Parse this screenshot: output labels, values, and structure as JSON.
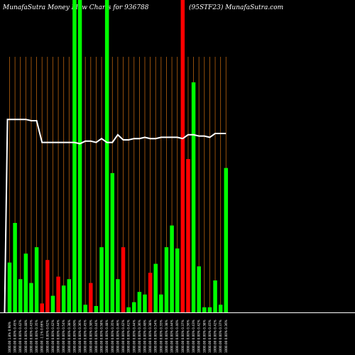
{
  "chart_data": {
    "type": "bar",
    "title_left": "MunafaSutra  Money Flow  Charts for 936788",
    "title_right": "(95STF23) MunafaSutra.com",
    "colors": {
      "background": "#000000",
      "grid": "#b8620f",
      "positive": "#00ff00",
      "negative": "#ff0000",
      "line": "#ffffff",
      "baseline": "#ffffff"
    },
    "ylim": [
      0,
      100
    ],
    "categories": [
      "1000.00 1.8% 0.98%",
      "1000.00 0.00% 0.45%",
      "1000.00 0.00% 0.42%",
      "1000.00 0.00% 0.48%",
      "1000.00 0.00% 0.43%",
      "1000.00 0.00% 0.35%",
      "1000.00 -1.1% 0.66%",
      "1000.00 0.00% 0.62%",
      "1000.00 0.00% 0.42%",
      "1000.00 0.00% 0.44%",
      "1000.00 0.00% 0.54%",
      "1000.00 0.00% 0.38%",
      "1000.00 0.00% 0.60%",
      "1000.00 0.00% 0.36%",
      "1000.00 0.00% 0.45%",
      "1000.00 0.00% 0.38%",
      "1000.00 0.00% 0.44%",
      "1000.00 0.00% 0.58%",
      "1000.00 0.00% 0.48%",
      "1000.00 0.00% 0.35%",
      "1000.00 0.00% 0.46%",
      "1000.00 0.00% 0.42%",
      "1000.00 0.00% 0.41%",
      "1000.00 0.00% 0.44%",
      "1000.00 0.00% 0.36%",
      "1000.00 0.00% 0.48%",
      "1000.00 0.00% 0.38%",
      "1000.00 0.00% 0.54%",
      "1000.00 0.00% 0.35%",
      "1000.00 0.00% 0.38%",
      "1000.00 0.00% 0.44%",
      "1000.00 0.00% 0.40%",
      "1000.00 0.00% 0.37%",
      "1000.00 0.00% 0.56%",
      "1000.00 0.00% 0.43%",
      "1000.00 0.00% 0.42%",
      "1000.00 0.00% 0.38%",
      "1000.00 0.00% 0.45%",
      "1000.00 0.00% 0.42%",
      "1000.00 0.00% 0.37%",
      "1000.00 0.00% 0.36%"
    ],
    "values": [
      19.5,
      35,
      13,
      23,
      11.5,
      25.5,
      3.5,
      20.5,
      6.5,
      14,
      10.5,
      13,
      100,
      100,
      3,
      11.5,
      2.5,
      25.5,
      100,
      54.5,
      13,
      25.5,
      2,
      4,
      8,
      7,
      15.5,
      19,
      7,
      25.5,
      34,
      25,
      100,
      60,
      90,
      18,
      2,
      2,
      12.5,
      3,
      56.5
    ],
    "signs": [
      "up",
      "up",
      "up",
      "up",
      "up",
      "up",
      "down",
      "down",
      "up",
      "down",
      "up",
      "up",
      "up",
      "up",
      "up",
      "down",
      "up",
      "up",
      "up",
      "up",
      "up",
      "down",
      "up",
      "up",
      "up",
      "up",
      "down",
      "up",
      "up",
      "up",
      "up",
      "up",
      "down",
      "down",
      "up",
      "up",
      "up",
      "up",
      "up",
      "up",
      "up"
    ],
    "line": [
      75.5,
      75.5,
      75.5,
      75.5,
      75,
      75,
      66.5,
      66.5,
      66.5,
      66.5,
      66.5,
      66.5,
      66.5,
      66,
      67,
      67,
      66.5,
      68,
      66.5,
      66.5,
      69.5,
      67.5,
      67.5,
      68,
      68,
      68.5,
      68,
      68,
      68.5,
      68.5,
      68.5,
      68.5,
      68,
      69.5,
      69.5,
      69,
      69,
      68.5,
      70,
      70,
      70
    ]
  }
}
